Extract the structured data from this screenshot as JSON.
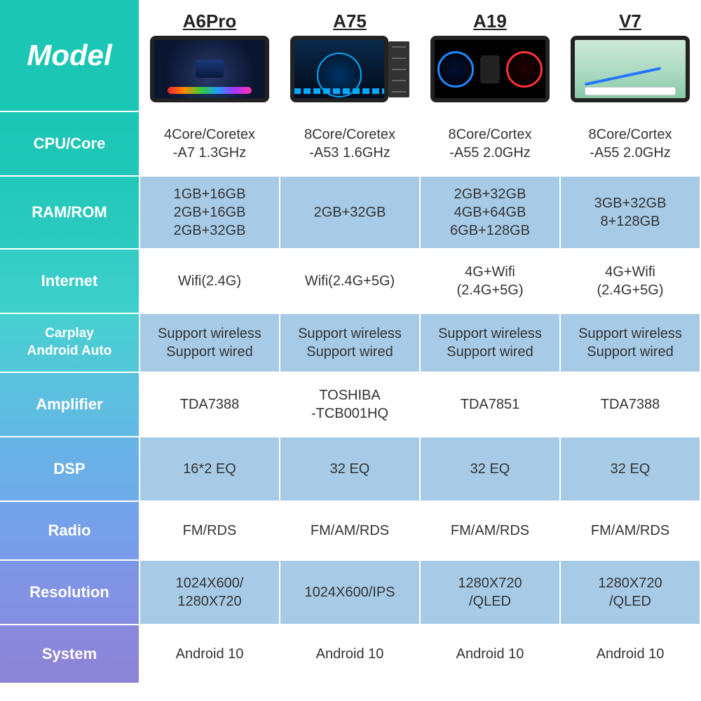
{
  "colors": {
    "teal_top": "#1bc6b4",
    "teal_grad_start": "#1bc6b4",
    "teal_grad_mid": "#36cccc",
    "blue_grad": "#6aa7ea",
    "purple_grad": "#8d83d6",
    "data_blue": "#a7cbe7",
    "data_white": "#ffffff",
    "border": "#ffffff",
    "text_body": "#333333",
    "text_label": "#ffffff"
  },
  "header": {
    "model_label": "Model",
    "products": [
      {
        "name": "A6Pro"
      },
      {
        "name": "A75"
      },
      {
        "name": "A19"
      },
      {
        "name": "V7"
      }
    ]
  },
  "rows": [
    {
      "key": "cpu",
      "label_lines": [
        "CPU/Core"
      ],
      "bg_label": "linear-gradient(180deg,#1bc6b4,#20c7b8)",
      "data_bg": "#ffffff",
      "height_class": "row-std",
      "values": [
        [
          "4Core/Coretex",
          "-A7 1.3GHz"
        ],
        [
          "8Core/Coretex",
          "-A53 1.6GHz"
        ],
        [
          "8Core/Cortex",
          "-A55 2.0GHz"
        ],
        [
          "8Core/Cortex",
          "-A55 2.0GHz"
        ]
      ]
    },
    {
      "key": "ram",
      "label_lines": [
        "RAM/ROM"
      ],
      "bg_label": "linear-gradient(180deg,#22c8ba,#2dcac0)",
      "data_bg": "#a7cbe7",
      "height_class": "row-ram",
      "values": [
        [
          "1GB+16GB",
          "2GB+16GB",
          "2GB+32GB"
        ],
        [
          "2GB+32GB"
        ],
        [
          "2GB+32GB",
          "4GB+64GB",
          "6GB+128GB"
        ],
        [
          "3GB+32GB",
          "8+128GB"
        ]
      ]
    },
    {
      "key": "internet",
      "label_lines": [
        "Internet"
      ],
      "bg_label": "linear-gradient(180deg,#32ccc4,#3fcfcb)",
      "data_bg": "#ffffff",
      "height_class": "row-std",
      "values": [
        [
          "Wifi(2.4G)"
        ],
        [
          "Wifi(2.4G+5G)"
        ],
        [
          "4G+Wifi",
          "(2.4G+5G)"
        ],
        [
          "4G+Wifi",
          "(2.4G+5G)"
        ]
      ]
    },
    {
      "key": "carplay",
      "label_lines": [
        "Carplay",
        "Android Auto"
      ],
      "bg_label": "linear-gradient(180deg,#46d0cf,#54c6da)",
      "data_bg": "#a7cbe7",
      "height_class": "row-carplay",
      "label_font": "19px",
      "values": [
        [
          "Support wireless",
          "Support wired"
        ],
        [
          "Support wireless",
          "Support wired"
        ],
        [
          "Support wireless",
          "Support wired"
        ],
        [
          "Support wireless",
          "Support wired"
        ]
      ]
    },
    {
      "key": "amplifier",
      "label_lines": [
        "Amplifier"
      ],
      "bg_label": "linear-gradient(180deg,#5ac2de,#62b9e3)",
      "data_bg": "#ffffff",
      "height_class": "row-amp",
      "values": [
        [
          "TDA7388"
        ],
        [
          "TOSHIBA",
          "-TCB001HQ"
        ],
        [
          "TDA7851"
        ],
        [
          "TDA7388"
        ]
      ]
    },
    {
      "key": "dsp",
      "label_lines": [
        "DSP"
      ],
      "bg_label": "linear-gradient(180deg,#66b4e6,#6eabe9)",
      "data_bg": "#a7cbe7",
      "height_class": "row-std",
      "values": [
        [
          "16*2 EQ"
        ],
        [
          "32 EQ"
        ],
        [
          "32 EQ"
        ],
        [
          "32 EQ"
        ]
      ]
    },
    {
      "key": "radio",
      "label_lines": [
        "Radio"
      ],
      "bg_label": "linear-gradient(180deg,#72a4eb,#7a9ce9)",
      "data_bg": "#ffffff",
      "height_class": "row-short",
      "values": [
        [
          "FM/RDS"
        ],
        [
          "FM/AM/RDS"
        ],
        [
          "FM/AM/RDS"
        ],
        [
          "FM/AM/RDS"
        ]
      ]
    },
    {
      "key": "resolution",
      "label_lines": [
        "Resolution"
      ],
      "bg_label": "linear-gradient(180deg,#7e96e6,#858ee1)",
      "data_bg": "#a7cbe7",
      "height_class": "row-std",
      "values": [
        [
          "1024X600/",
          "1280X720"
        ],
        [
          "1024X600/IPS"
        ],
        [
          "1280X720",
          "/QLED"
        ],
        [
          "1280X720",
          "/QLED"
        ]
      ]
    },
    {
      "key": "system",
      "label_lines": [
        "System"
      ],
      "bg_label": "linear-gradient(180deg,#8889dc,#8d83d6)",
      "data_bg": "#ffffff",
      "height_class": "row-short",
      "values": [
        [
          "Android 10"
        ],
        [
          "Android 10"
        ],
        [
          "Android 10"
        ],
        [
          "Android 10"
        ]
      ]
    }
  ]
}
